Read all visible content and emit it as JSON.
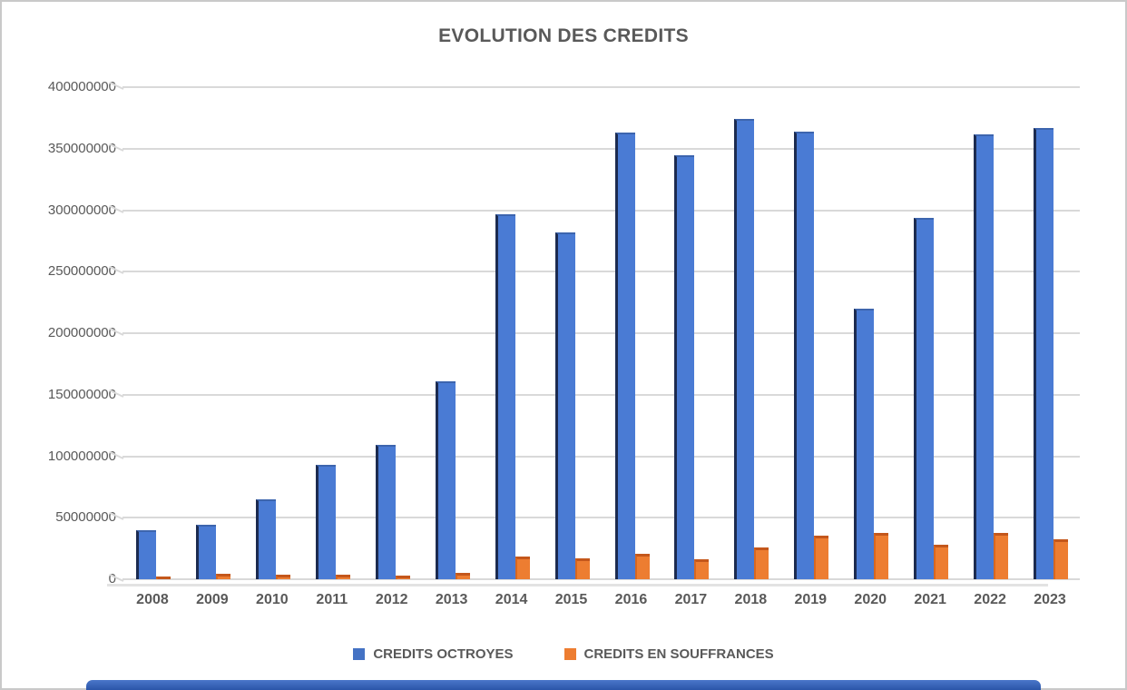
{
  "title": "EVOLUTION DES CREDITS",
  "chart_data": {
    "type": "bar",
    "style": "3d-clustered-column",
    "title": "EVOLUTION DES CREDITS",
    "categories": [
      "2008",
      "2009",
      "2010",
      "2011",
      "2012",
      "2013",
      "2014",
      "2015",
      "2016",
      "2017",
      "2018",
      "2019",
      "2020",
      "2021",
      "2022",
      "2023"
    ],
    "series": [
      {
        "name": "CREDITS OCTROYES",
        "color": "#4472C4",
        "values": [
          40000000,
          44000000,
          65000000,
          93000000,
          109000000,
          161000000,
          297000000,
          282000000,
          363000000,
          345000000,
          374000000,
          364000000,
          220000000,
          294000000,
          362000000,
          367000000
        ]
      },
      {
        "name": "CREDITS EN SOUFFRANCES",
        "color": "#ED7D31",
        "values": [
          2500000,
          4500000,
          4000000,
          4000000,
          3000000,
          5500000,
          18500000,
          17000000,
          21000000,
          16000000,
          26000000,
          35500000,
          38000000,
          28000000,
          37500000,
          32500000
        ]
      }
    ],
    "xlabel": "",
    "ylabel": "",
    "ylim": [
      0,
      400000000
    ],
    "ytick_interval": 50000000,
    "ytick_labels": [
      "400000000",
      "350000000",
      "300000000",
      "250000000",
      "200000000",
      "150000000",
      "100000000",
      "50000000",
      "0"
    ],
    "grid": true,
    "legend_position": "bottom"
  },
  "legend": {
    "items": [
      {
        "label": "CREDITS OCTROYES",
        "color": "#4472C4"
      },
      {
        "label": "CREDITS EN SOUFFRANCES",
        "color": "#ED7D31"
      }
    ]
  },
  "colors": {
    "title_text": "#595959",
    "axis_text": "#595959",
    "gridline": "#d9d9d9",
    "blue_face": "#4A7BD4",
    "blue_edge": "#1C2B50",
    "orange_face": "#ED7D31",
    "orange_cap": "#C4571B",
    "floor_line": "#e3e3e3",
    "frame_border": "#c9c9c9",
    "bottom_strip": "#2d57ad"
  }
}
